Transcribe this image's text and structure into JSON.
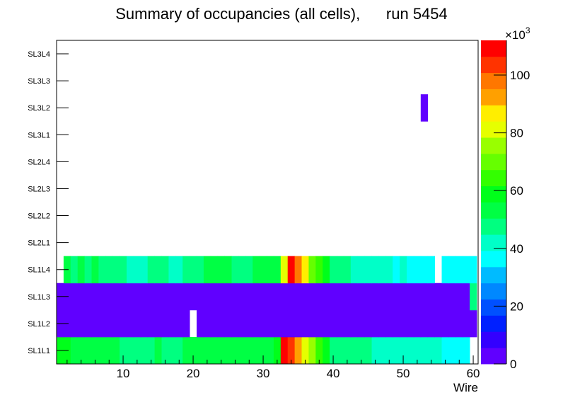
{
  "chart_data": {
    "type": "heatmap",
    "title": "Summary of occupancies (all cells),      run 5454",
    "xlabel": "Wire",
    "ylabel": "",
    "xlim": [
      0.5,
      60.7
    ],
    "x_ticks": [
      10,
      20,
      30,
      40,
      50,
      60
    ],
    "z_label_multiplier": "×10",
    "z_label_exponent": "3",
    "z_range_thousands": [
      0,
      112
    ],
    "z_ticks": [
      0,
      20,
      40,
      60,
      80,
      100
    ],
    "palette": [
      "#6000ff",
      "#3300ff",
      "#0020ff",
      "#0050ff",
      "#0088ff",
      "#00bbff",
      "#00ffff",
      "#00ffc8",
      "#00ff80",
      "#00ff44",
      "#00ff1a",
      "#33ff00",
      "#66ff00",
      "#99ff00",
      "#e6ff00",
      "#ffee00",
      "#ffa000",
      "#ff7700",
      "#ff3300",
      "#ff0000"
    ],
    "value_unit": "thousands of hits",
    "rows": [
      {
        "label": "SL1L1",
        "values": [
          59,
          59,
          53,
          53,
          53,
          53,
          53,
          53,
          53,
          48,
          48,
          48,
          48,
          48,
          53,
          48,
          48,
          48,
          53,
          53,
          53,
          53,
          53,
          53,
          53,
          53,
          53,
          53,
          53,
          53,
          53,
          59,
          109,
          104,
          92,
          81,
          76,
          64,
          59,
          48,
          48,
          48,
          48,
          48,
          48,
          42,
          42,
          42,
          42,
          42,
          42,
          42,
          42,
          42,
          42,
          36,
          36,
          36,
          36,
          null
        ]
      },
      {
        "label": "SL1L2",
        "values": [
          3,
          3,
          3,
          3,
          3,
          3,
          3,
          3,
          3,
          3,
          3,
          3,
          3,
          3,
          3,
          3,
          3,
          3,
          3,
          null,
          3,
          3,
          3,
          3,
          3,
          3,
          3,
          3,
          3,
          3,
          3,
          3,
          3,
          3,
          3,
          3,
          3,
          3,
          3,
          3,
          3,
          3,
          3,
          3,
          3,
          3,
          3,
          3,
          3,
          3,
          3,
          3,
          3,
          3,
          3,
          3,
          3,
          3,
          3,
          3
        ]
      },
      {
        "label": "SL1L3",
        "values": [
          3,
          3,
          3,
          3,
          3,
          3,
          3,
          3,
          3,
          3,
          3,
          3,
          3,
          3,
          3,
          3,
          3,
          3,
          3,
          3,
          3,
          3,
          3,
          3,
          3,
          3,
          3,
          3,
          3,
          3,
          3,
          3,
          3,
          3,
          3,
          3,
          3,
          3,
          3,
          3,
          3,
          3,
          3,
          3,
          3,
          3,
          3,
          3,
          3,
          3,
          3,
          3,
          3,
          3,
          3,
          3,
          3,
          3,
          3,
          48
        ]
      },
      {
        "label": "SL1L4",
        "values": [
          null,
          53,
          48,
          53,
          48,
          53,
          48,
          48,
          48,
          48,
          42,
          42,
          42,
          48,
          48,
          48,
          42,
          42,
          48,
          48,
          48,
          53,
          53,
          53,
          53,
          48,
          48,
          48,
          53,
          53,
          53,
          53,
          81,
          109,
          98,
          87,
          70,
          64,
          59,
          48,
          48,
          48,
          42,
          42,
          42,
          42,
          42,
          42,
          36,
          42,
          36,
          36,
          36,
          36,
          null,
          36,
          36,
          36,
          36,
          36
        ]
      },
      {
        "label": "SL2L1",
        "values": {}
      },
      {
        "label": "SL2L2",
        "values": {}
      },
      {
        "label": "SL2L3",
        "values": {}
      },
      {
        "label": "SL2L4",
        "values": {}
      },
      {
        "label": "SL3L1",
        "values": {}
      },
      {
        "label": "SL3L2",
        "values": {
          "53": 3
        }
      },
      {
        "label": "SL3L3",
        "values": {}
      },
      {
        "label": "SL3L4",
        "values": {}
      }
    ]
  }
}
